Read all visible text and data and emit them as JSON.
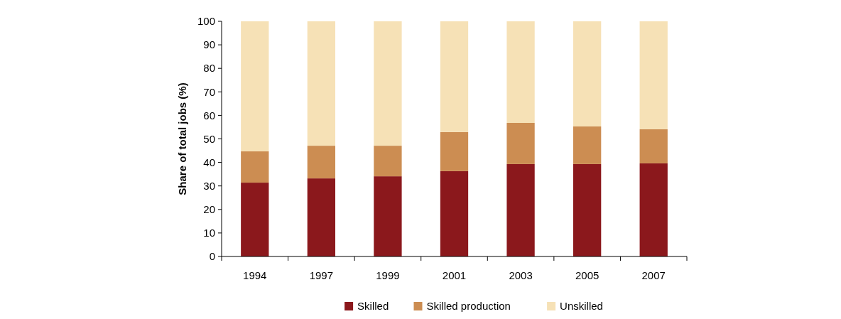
{
  "chart_data": {
    "type": "bar",
    "stacked": true,
    "ylabel": "Share of total jobs (%)",
    "categories": [
      "1994",
      "1997",
      "1999",
      "2001",
      "2003",
      "2005",
      "2007"
    ],
    "series": [
      {
        "name": "Skilled",
        "color": "#8b181c",
        "values": [
          31.4,
          33.2,
          34.1,
          36.3,
          39.3,
          39.3,
          39.6
        ]
      },
      {
        "name": "Skilled production",
        "color": "#cc8d52",
        "values": [
          13.3,
          13.9,
          13.0,
          16.6,
          17.5,
          16.0,
          14.5
        ]
      },
      {
        "name": "Unskilled",
        "color": "#f6e1b6",
        "values": [
          55.3,
          52.9,
          52.9,
          47.1,
          43.2,
          44.7,
          45.9
        ]
      }
    ],
    "ylim": [
      0,
      100
    ],
    "yticks": [
      0,
      10,
      20,
      30,
      40,
      50,
      60,
      70,
      80,
      90,
      100
    ],
    "grid": false,
    "legend": "bottom"
  }
}
